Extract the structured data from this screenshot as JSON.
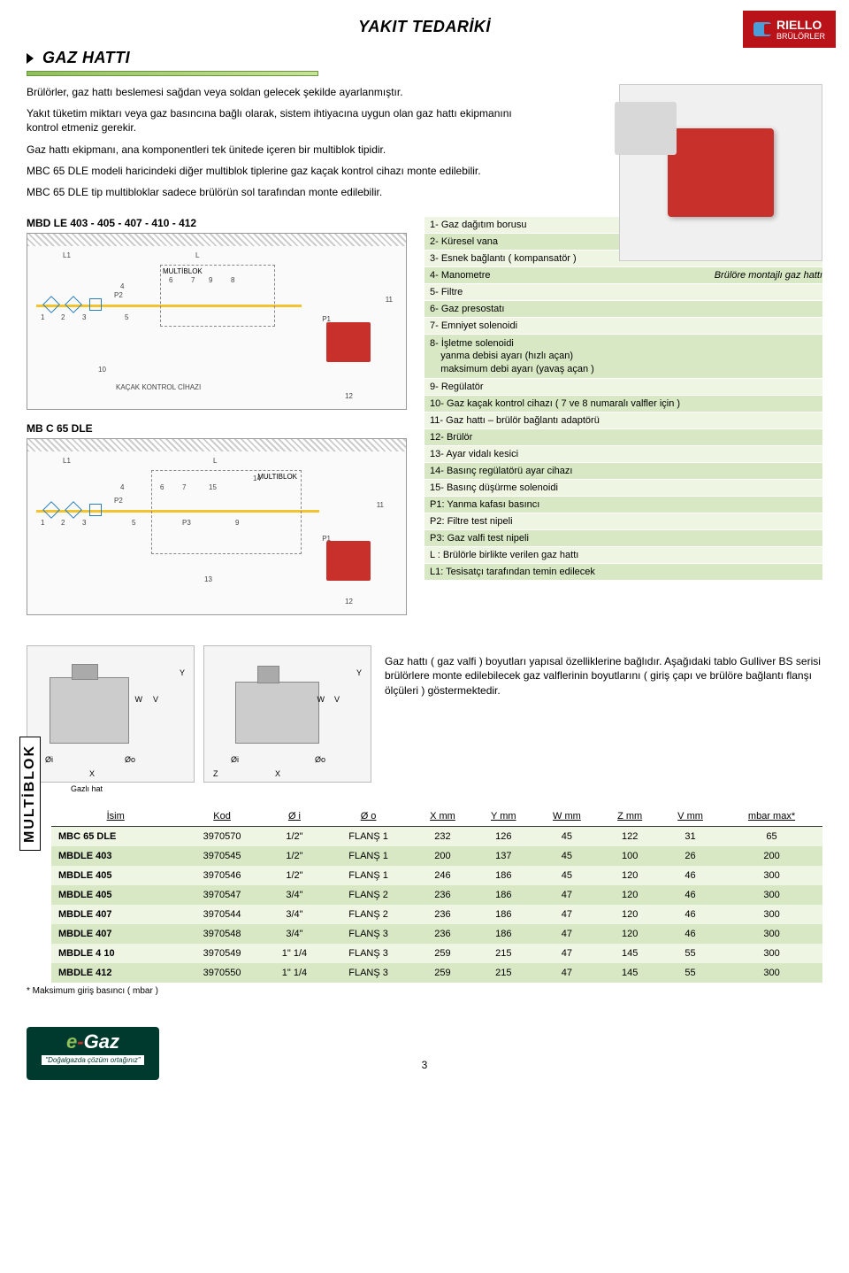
{
  "header": {
    "logo_brand": "RIELLO",
    "logo_sub": "BRÜLÖRLER"
  },
  "section": {
    "title": "GAZ HATTI",
    "main_title": "YAKIT TEDARİKİ",
    "para1": "Brülörler, gaz hattı beslemesi sağdan veya soldan gelecek şekilde ayarlanmıştır.",
    "para2": "Yakıt tüketim miktarı veya gaz basıncına bağlı olarak, sistem ihtiyacına uygun olan gaz hattı ekipmanını kontrol etmeniz gerekir.",
    "para3": "Gaz hattı ekipmanı, ana komponentleri tek ünitede içeren bir multiblok tipidir.",
    "para4": "MBC 65 DLE modeli haricindeki diğer multiblok tiplerine gaz kaçak kontrol cihazı monte edilebilir.",
    "para5": "MBC 65 DLE tip multibloklar sadece brülörün sol tarafından monte edilebilir."
  },
  "photo_caption": "Brülöre montajlı gaz hattı",
  "diagram1": {
    "label": "MBD LE 403 - 405 - 407 - 410 - 412",
    "multiblok": "MULTİBLOK",
    "kacak": "KAÇAK KONTROL CİHAZI"
  },
  "diagram2": {
    "label": "MB C 65 DLE",
    "multiblok": "MULTIBLOK"
  },
  "legend": [
    "1- Gaz dağıtım borusu",
    "2- Küresel vana",
    "3- Esnek bağlantı ( kompansatör )",
    "4- Manometre",
    "5- Filtre",
    "6- Gaz presostatı",
    "7- Emniyet solenoidi",
    "8- İşletme solenoidi\n    yanma debisi ayarı (hızlı açan)\n    maksimum debi ayarı (yavaş açan )",
    "9- Regülatör",
    "10- Gaz kaçak kontrol cihazı ( 7 ve 8 numaralı valfler için )",
    "11- Gaz hattı – brülör bağlantı adaptörü",
    "12- Brülör",
    "13- Ayar vidalı kesici",
    "14- Basınç regülatörü ayar cihazı",
    "15- Basınç düşürme solenoidi",
    "P1: Yanma kafası basıncı",
    "P2:  Filtre test nipeli",
    "P3: Gaz valfi test nipeli",
    "L  : Brülörle birlikte verilen gaz hattı",
    "L1: Tesisatçı tarafından temin edilecek"
  ],
  "dim_text": "Gaz hattı ( gaz valfi ) boyutları yapısal özelliklerine bağlıdır. Aşağıdaki tablo Gulliver BS serisi brülörlere monte edilebilecek gaz valflerinin boyutlarını ( giriş çapı ve brülöre bağlantı flanşı ölçüleri ) göstermektedir.",
  "gazli_hat": "Gazlı hat",
  "table": {
    "vertical_label": "MULTİBLOK",
    "headers": [
      "İsim",
      "Kod",
      "Ø i",
      "Ø o",
      "X mm",
      "Y mm",
      "W mm",
      "Z mm",
      "V mm",
      "mbar max*"
    ],
    "rows": [
      [
        "MBC 65 DLE",
        "3970570",
        "1/2\"",
        "FLANŞ 1",
        "232",
        "126",
        "45",
        "122",
        "31",
        "65"
      ],
      [
        "MBDLE 403",
        "3970545",
        "1/2\"",
        "FLANŞ 1",
        "200",
        "137",
        "45",
        "100",
        "26",
        "200"
      ],
      [
        "MBDLE 405",
        "3970546",
        "1/2\"",
        "FLANŞ 1",
        "246",
        "186",
        "45",
        "120",
        "46",
        "300"
      ],
      [
        "MBDLE 405",
        "3970547",
        "3/4\"",
        "FLANŞ 2",
        "236",
        "186",
        "47",
        "120",
        "46",
        "300"
      ],
      [
        "MBDLE 407",
        "3970544",
        "3/4\"",
        "FLANŞ 2",
        "236",
        "186",
        "47",
        "120",
        "46",
        "300"
      ],
      [
        "MBDLE 407",
        "3970548",
        "3/4\"",
        "FLANŞ 3",
        "236",
        "186",
        "47",
        "120",
        "46",
        "300"
      ],
      [
        "MBDLE 4 10",
        "3970549",
        "1\" 1/4",
        "FLANŞ 3",
        "259",
        "215",
        "47",
        "145",
        "55",
        "300"
      ],
      [
        "MBDLE 412",
        "3970550",
        "1\" 1/4",
        "FLANŞ 3",
        "259",
        "215",
        "47",
        "145",
        "55",
        "300"
      ]
    ],
    "footnote": "* Maksimum giriş basıncı ( mbar )"
  },
  "footer": {
    "egas_e": "e",
    "egas_dash": "-",
    "egas_gaz": "Gaz",
    "egas_tag": "\"Doğalgazda çözüm ortağınız\"",
    "page_num": "3"
  },
  "dim_labels": {
    "Y": "Y",
    "W": "W",
    "V": "V",
    "X": "X",
    "Z": "Z",
    "Oi": "Øi",
    "Oo": "Øo"
  }
}
